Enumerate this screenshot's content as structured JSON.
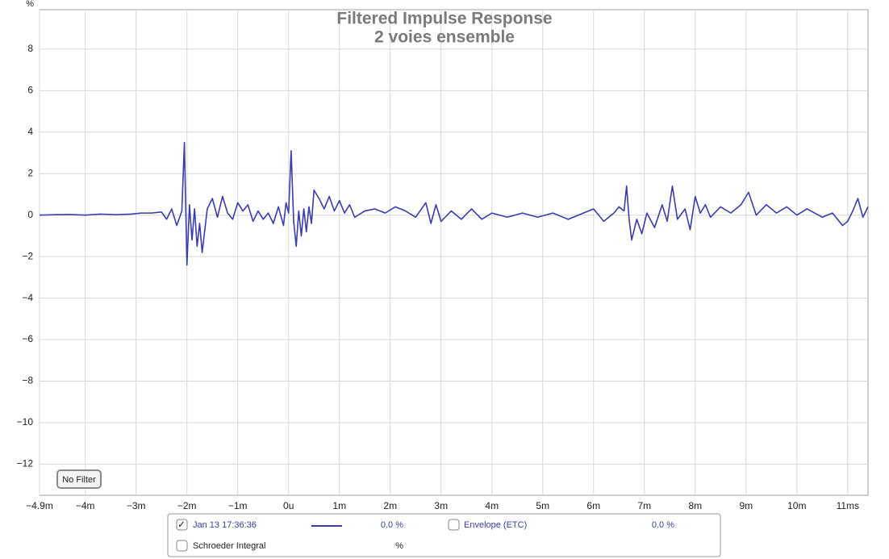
{
  "chart_data": {
    "type": "line",
    "title": "Filtered Impulse Response",
    "subtitle": "2 voies ensemble",
    "y_unit": "%",
    "xlim": [
      -4.9,
      11.4
    ],
    "ylim": [
      -13.5,
      9.9
    ],
    "xticks": [
      {
        "value": -4.9,
        "label": "−4.9m"
      },
      {
        "value": -4,
        "label": "−4m"
      },
      {
        "value": -3,
        "label": "−3m"
      },
      {
        "value": -2,
        "label": "−2m"
      },
      {
        "value": -1,
        "label": "−1m"
      },
      {
        "value": 0,
        "label": "0u"
      },
      {
        "value": 1,
        "label": "1m"
      },
      {
        "value": 2,
        "label": "2m"
      },
      {
        "value": 3,
        "label": "3m"
      },
      {
        "value": 4,
        "label": "4m"
      },
      {
        "value": 5,
        "label": "5m"
      },
      {
        "value": 6,
        "label": "6m"
      },
      {
        "value": 7,
        "label": "7m"
      },
      {
        "value": 8,
        "label": "8m"
      },
      {
        "value": 9,
        "label": "9m"
      },
      {
        "value": 10,
        "label": "10m"
      },
      {
        "value": 11,
        "label": "11ms"
      }
    ],
    "yticks": [
      {
        "value": -12,
        "label": "−12"
      },
      {
        "value": -10,
        "label": "−10"
      },
      {
        "value": -8,
        "label": "−8"
      },
      {
        "value": -6,
        "label": "−6"
      },
      {
        "value": -4,
        "label": "−4"
      },
      {
        "value": -2,
        "label": "−2"
      },
      0,
      2,
      4,
      6,
      8
    ],
    "grid": true,
    "x": [
      -4.9,
      -4.6,
      -4.3,
      -4.0,
      -3.7,
      -3.4,
      -3.1,
      -2.9,
      -2.7,
      -2.5,
      -2.4,
      -2.3,
      -2.2,
      -2.1,
      -2.05,
      -2.0,
      -1.95,
      -1.9,
      -1.85,
      -1.8,
      -1.75,
      -1.7,
      -1.6,
      -1.5,
      -1.4,
      -1.3,
      -1.2,
      -1.1,
      -1.0,
      -0.9,
      -0.8,
      -0.7,
      -0.6,
      -0.5,
      -0.4,
      -0.3,
      -0.2,
      -0.1,
      -0.05,
      0.0,
      0.05,
      0.1,
      0.15,
      0.2,
      0.25,
      0.3,
      0.35,
      0.4,
      0.45,
      0.5,
      0.6,
      0.7,
      0.8,
      0.9,
      1.0,
      1.1,
      1.2,
      1.3,
      1.5,
      1.7,
      1.9,
      2.1,
      2.3,
      2.5,
      2.7,
      2.8,
      2.9,
      3.0,
      3.2,
      3.4,
      3.6,
      3.8,
      4.0,
      4.3,
      4.6,
      4.9,
      5.2,
      5.5,
      5.8,
      6.0,
      6.2,
      6.4,
      6.5,
      6.6,
      6.65,
      6.7,
      6.75,
      6.85,
      6.95,
      7.05,
      7.2,
      7.35,
      7.45,
      7.55,
      7.65,
      7.8,
      7.9,
      8.0,
      8.1,
      8.2,
      8.3,
      8.5,
      8.7,
      8.9,
      9.05,
      9.2,
      9.4,
      9.6,
      9.8,
      10.0,
      10.2,
      10.5,
      10.7,
      10.9,
      11.0,
      11.1,
      11.2,
      11.3,
      11.4
    ],
    "series": [
      {
        "name": "Jan 13 17:36:36",
        "color": "#3b3bb3",
        "readout": "0.0 %",
        "values": [
          0,
          0.02,
          0.03,
          0,
          0.05,
          0.02,
          0.05,
          0.1,
          0.1,
          0.15,
          -0.2,
          0.3,
          -0.5,
          0.2,
          3.5,
          -2.4,
          0.5,
          -1.2,
          0.3,
          -1.5,
          -0.4,
          -1.8,
          0.3,
          0.8,
          -0.1,
          0.9,
          0.1,
          -0.2,
          0.6,
          0.2,
          0.5,
          -0.3,
          0.2,
          -0.2,
          0.1,
          -0.4,
          0.4,
          -0.5,
          0.6,
          0.1,
          3.1,
          -0.3,
          -1.5,
          0.2,
          -1.0,
          0.3,
          -0.8,
          0.4,
          -0.4,
          1.2,
          0.8,
          0.3,
          0.9,
          0.2,
          0.7,
          0.1,
          0.5,
          -0.1,
          0.2,
          0.3,
          0.1,
          0.4,
          0.2,
          -0.1,
          0.6,
          -0.4,
          0.5,
          -0.3,
          0.2,
          -0.2,
          0.3,
          -0.2,
          0.1,
          -0.1,
          0.1,
          -0.1,
          0.1,
          -0.2,
          0.1,
          0.3,
          -0.3,
          0.1,
          0.4,
          0.2,
          1.4,
          -0.2,
          -1.2,
          -0.2,
          -0.9,
          0.1,
          -0.6,
          0.5,
          -0.3,
          1.4,
          -0.2,
          0.3,
          -0.7,
          0.9,
          0.1,
          0.5,
          -0.1,
          0.4,
          0.1,
          0.5,
          1.1,
          0.0,
          0.5,
          0.1,
          0.4,
          0.0,
          0.3,
          -0.1,
          0.1,
          -0.5,
          -0.3,
          0.2,
          0.8,
          -0.1,
          0.4
        ]
      }
    ],
    "legend_extra": [
      {
        "name": "Envelope (ETC)",
        "readout": "0.0 %"
      },
      {
        "name": "Schroeder Integral",
        "readout": "%"
      }
    ],
    "filter_button": "No Filter"
  }
}
